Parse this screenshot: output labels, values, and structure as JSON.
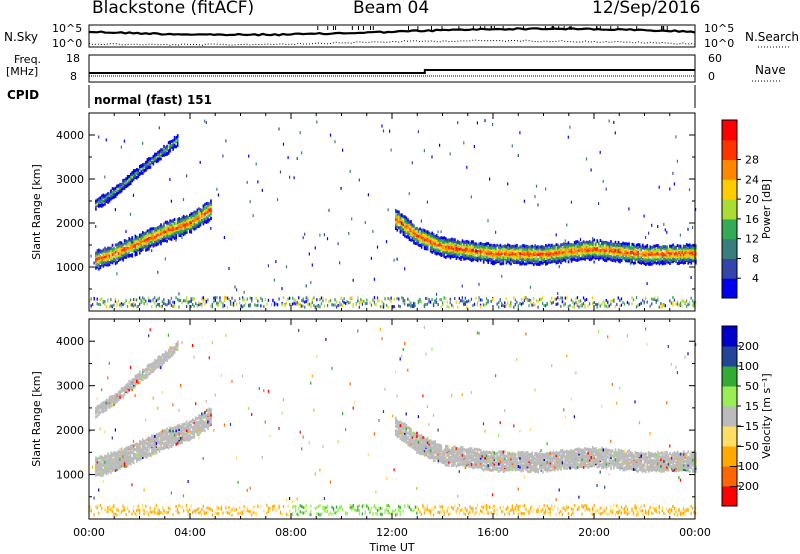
{
  "header": {
    "station": "Blackstone (fitACF)",
    "beam": "Beam 04",
    "date": "12/Sep/2016"
  },
  "top_panels": {
    "nsky_label": "N.Sky",
    "nsky_ticks": [
      "10^5",
      "10^0"
    ],
    "nsearch_label": "N.Search",
    "nsearch_ticks": [
      "10^5",
      "10^0"
    ],
    "freq_label_1": "Freq.",
    "freq_label_2": "[MHz]",
    "freq_ticks": [
      "18",
      "8"
    ],
    "nave_label": "Nave",
    "nave_ticks": [
      "60",
      "0"
    ],
    "cpid_label": "CPID",
    "cpid_value": "normal (fast) 151"
  },
  "colors": {
    "power": [
      "#0000ee",
      "#3344aa",
      "#3a7d7d",
      "#33aa55",
      "#aadd33",
      "#ffcc00",
      "#ff8800",
      "#ff3300",
      "#ff0000"
    ],
    "velocity": [
      "#ff0000",
      "#ff6600",
      "#ffaa00",
      "#ffdd66",
      "#bbbbbb",
      "#99ee55",
      "#33aa33",
      "#224499",
      "#0000cc"
    ]
  },
  "chart_data": [
    {
      "type": "heatmap",
      "name": "power",
      "ylabel": "Slant Range [km]",
      "y_ticks": [
        1000,
        2000,
        3000,
        4000
      ],
      "ylim": [
        0,
        4500
      ],
      "x_ticks": [
        "00:00",
        "04:00",
        "08:00",
        "12:00",
        "16:00",
        "20:00",
        "00:00"
      ],
      "xlim": [
        0,
        24
      ],
      "colorbar_label": "Power [dB]",
      "colorbar_ticks": [
        "4",
        "8",
        "12",
        "16",
        "20",
        "24",
        "28"
      ],
      "main_band": [
        [
          0.2,
          1150
        ],
        [
          1,
          1300
        ],
        [
          2,
          1550
        ],
        [
          3,
          1800
        ],
        [
          4,
          2000
        ],
        [
          4.8,
          2300
        ]
      ],
      "upper_band": [
        [
          0.2,
          2400
        ],
        [
          1,
          2700
        ],
        [
          2,
          3200
        ],
        [
          3,
          3650
        ],
        [
          3.5,
          3900
        ]
      ],
      "afternoon_band": [
        [
          12.1,
          2100
        ],
        [
          13,
          1700
        ],
        [
          14,
          1450
        ],
        [
          16,
          1300
        ],
        [
          18,
          1280
        ],
        [
          19,
          1350
        ],
        [
          20,
          1400
        ],
        [
          22,
          1280
        ],
        [
          24,
          1300
        ]
      ]
    },
    {
      "type": "heatmap",
      "name": "velocity",
      "ylabel": "Slant Range [km]",
      "y_ticks": [
        1000,
        2000,
        3000,
        4000
      ],
      "ylim": [
        0,
        4500
      ],
      "x_ticks": [
        "00:00",
        "04:00",
        "08:00",
        "12:00",
        "16:00",
        "20:00",
        "00:00"
      ],
      "xlim": [
        0,
        24
      ],
      "xlabel": "Time UT",
      "colorbar_label": "Velocity [m s⁻¹]",
      "colorbar_ticks": [
        "200",
        "100",
        "50",
        "15",
        "−15",
        "−50",
        "−100",
        "−200"
      ]
    }
  ]
}
